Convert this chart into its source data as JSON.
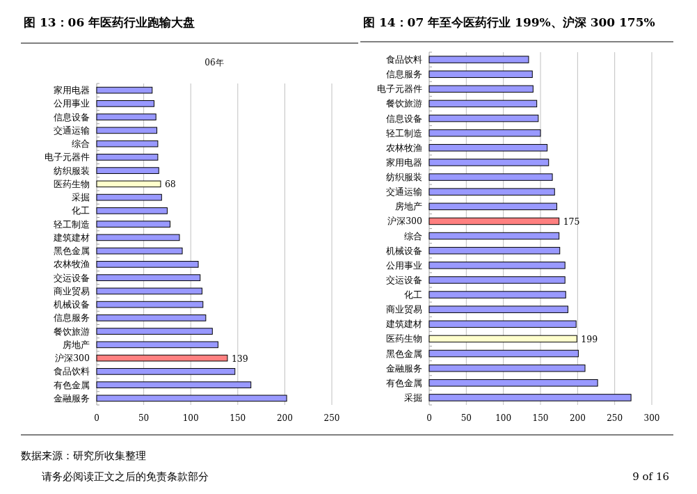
{
  "chart_data": [
    {
      "type": "bar",
      "orientation": "horizontal",
      "title": "图 13：06 年医药行业跑输大盘",
      "subtitle": "06年",
      "categories": [
        "家用电器",
        "公用事业",
        "信息设备",
        "交通运输",
        "综合",
        "电子元器件",
        "纺织服装",
        "医药生物",
        "采掘",
        "化工",
        "轻工制造",
        "建筑建材",
        "黑色金属",
        "农林牧渔",
        "交运设备",
        "商业贸易",
        "机械设备",
        "信息服务",
        "餐饮旅游",
        "房地产",
        "沪深300",
        "食品饮料",
        "有色金属",
        "金融服务"
      ],
      "values": [
        59,
        61,
        63,
        64,
        65,
        65,
        66,
        68,
        69,
        75,
        78,
        88,
        91,
        108,
        110,
        112,
        113,
        116,
        123,
        129,
        139,
        147,
        164,
        202
      ],
      "colors": [
        "#9999ff",
        "#9999ff",
        "#9999ff",
        "#9999ff",
        "#9999ff",
        "#9999ff",
        "#9999ff",
        "#ffffcc",
        "#9999ff",
        "#9999ff",
        "#9999ff",
        "#9999ff",
        "#9999ff",
        "#9999ff",
        "#9999ff",
        "#9999ff",
        "#9999ff",
        "#9999ff",
        "#9999ff",
        "#9999ff",
        "#ff8080",
        "#9999ff",
        "#9999ff",
        "#9999ff"
      ],
      "value_labels": [
        null,
        null,
        null,
        null,
        null,
        null,
        null,
        "68",
        null,
        null,
        null,
        null,
        null,
        null,
        null,
        null,
        null,
        null,
        null,
        null,
        "139",
        null,
        null,
        null
      ],
      "xlim": [
        0,
        250
      ],
      "xticks": [
        0,
        50,
        100,
        150,
        200,
        250
      ],
      "grid": "x",
      "annotations": [
        "数据来源：研究所收集整理",
        "请务必阅读正文之后的免责条款部分"
      ]
    },
    {
      "type": "bar",
      "orientation": "horizontal",
      "title": "图 14：07 年至今医药行业 199%、沪深 300 175%",
      "categories": [
        "食品饮料",
        "信息服务",
        "电子元器件",
        "餐饮旅游",
        "信息设备",
        "轻工制造",
        "农林牧渔",
        "家用电器",
        "纺织服装",
        "交通运输",
        "房地产",
        "沪深300",
        "综合",
        "机械设备",
        "公用事业",
        "交运设备",
        "化工",
        "商业贸易",
        "建筑建材",
        "医药生物",
        "黑色金属",
        "金融服务",
        "有色金属",
        "采掘"
      ],
      "values": [
        134,
        139,
        140,
        145,
        147,
        150,
        159,
        161,
        166,
        169,
        172,
        175,
        175,
        176,
        183,
        183,
        184,
        187,
        198,
        199,
        201,
        210,
        227,
        272
      ],
      "colors": [
        "#9999ff",
        "#9999ff",
        "#9999ff",
        "#9999ff",
        "#9999ff",
        "#9999ff",
        "#9999ff",
        "#9999ff",
        "#9999ff",
        "#9999ff",
        "#9999ff",
        "#ff8080",
        "#9999ff",
        "#9999ff",
        "#9999ff",
        "#9999ff",
        "#9999ff",
        "#9999ff",
        "#9999ff",
        "#ffffcc",
        "#9999ff",
        "#9999ff",
        "#9999ff",
        "#9999ff"
      ],
      "value_labels": [
        null,
        null,
        null,
        null,
        null,
        null,
        null,
        null,
        null,
        null,
        null,
        "175",
        null,
        null,
        null,
        null,
        null,
        null,
        null,
        "199",
        null,
        null,
        null,
        null
      ],
      "xlim": [
        0,
        300
      ],
      "xticks": [
        0,
        50,
        100,
        150,
        200,
        250,
        300
      ],
      "grid": "x",
      "annotations": [
        "9 of 16"
      ]
    }
  ]
}
